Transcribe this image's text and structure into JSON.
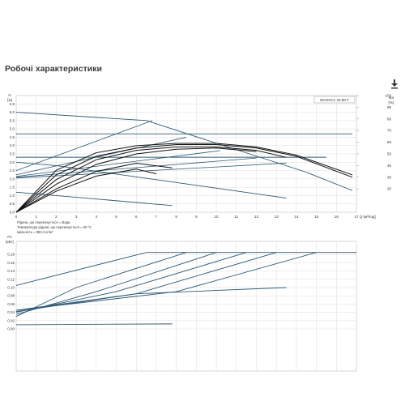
{
  "page": {
    "title": "Робочі характеристики",
    "download_icon": "download-icon"
  },
  "chart_data": [
    {
      "type": "line",
      "title": "",
      "model_label": "MAGNA1 40-80 F",
      "xlabel": "Q [м³/год]",
      "ylabel_left": "H [м]",
      "ylabel_right": "eta [%]",
      "xlim": [
        0,
        17
      ],
      "ylim": [
        0,
        7
      ],
      "y2lim": [
        0,
        100
      ],
      "x_ticks": [
        "0",
        "1",
        "2",
        "3",
        "4",
        "5",
        "6",
        "7",
        "8",
        "9",
        "10",
        "11",
        "12",
        "13",
        "14",
        "15",
        "16",
        "17"
      ],
      "y_ticks": [
        "0.0",
        "0.5",
        "1.0",
        "1.5",
        "2.0",
        "2.5",
        "3.0",
        "3.5",
        "4.0",
        "4.5",
        "5.0",
        "5.5",
        "6.0",
        "6.5"
      ],
      "y2_ticks": [
        "20",
        "30",
        "40",
        "50",
        "60",
        "70",
        "80",
        "90",
        "100"
      ],
      "notes": [
        "Рідина, що перекачується = Вода",
        "Температура рідини, що перекачується = 60 °C",
        "Щільність = 983.2 кг/м³"
      ],
      "grid": true,
      "series": [
        {
          "kind": "head",
          "x": [
            0,
            6.5,
            14.5,
            16.8
          ],
          "y": [
            6.0,
            5.5,
            2.4,
            1.3
          ]
        },
        {
          "kind": "head",
          "x": [
            0,
            16.8
          ],
          "y": [
            4.7,
            4.7
          ]
        },
        {
          "kind": "head",
          "x": [
            0,
            15.5
          ],
          "y": [
            3.3,
            3.3
          ]
        },
        {
          "kind": "head",
          "x": [
            0,
            2,
            13.5
          ],
          "y": [
            3.0,
            2.8,
            0.85
          ]
        },
        {
          "kind": "head",
          "x": [
            0,
            2,
            7.8
          ],
          "y": [
            1.2,
            1.0,
            0.4
          ]
        },
        {
          "kind": "system",
          "x": [
            0,
            6.8
          ],
          "y": [
            2.5,
            5.5
          ]
        },
        {
          "kind": "system",
          "x": [
            0,
            8.5
          ],
          "y": [
            2.25,
            4.5
          ]
        },
        {
          "kind": "system",
          "x": [
            0,
            10.2
          ],
          "y": [
            2.15,
            3.7
          ]
        },
        {
          "kind": "system",
          "x": [
            0,
            12
          ],
          "y": [
            2.1,
            3.25
          ]
        },
        {
          "kind": "system",
          "x": [
            0,
            13.5
          ],
          "y": [
            2.05,
            2.95
          ]
        },
        {
          "kind": "efficiency",
          "x": [
            0,
            2,
            4,
            6,
            8,
            10,
            12,
            14,
            16.8
          ],
          "y2": [
            0,
            36,
            51,
            57,
            59,
            59,
            56,
            49,
            32
          ]
        },
        {
          "kind": "efficiency",
          "x": [
            0,
            2,
            4,
            6,
            8,
            10,
            12,
            14,
            16.8
          ],
          "y2": [
            0,
            32,
            48,
            55,
            58,
            58,
            55,
            48,
            30
          ]
        },
        {
          "kind": "efficiency",
          "x": [
            0,
            2,
            4,
            6,
            8,
            10,
            12,
            13.5
          ],
          "y2": [
            0,
            28,
            45,
            53,
            56,
            56,
            53,
            47
          ]
        },
        {
          "kind": "efficiency",
          "x": [
            0,
            2,
            4,
            6,
            8,
            10,
            12
          ],
          "y2": [
            0,
            24,
            41,
            50,
            54,
            55,
            52
          ]
        },
        {
          "kind": "efficiency",
          "x": [
            0,
            2,
            4,
            6,
            7.8
          ],
          "y2": [
            0,
            20,
            35,
            42,
            38
          ]
        },
        {
          "kind": "efficiency",
          "x": [
            0,
            2,
            4,
            6,
            7
          ],
          "y2": [
            0,
            18,
            31,
            37,
            33
          ]
        }
      ]
    },
    {
      "type": "line",
      "title": "",
      "xlabel": "",
      "ylabel": "P1 [кВт]",
      "xlim": [
        0,
        17
      ],
      "ylim": [
        0,
        0.2
      ],
      "y_ticks": [
        "0.00",
        "0.02",
        "0.04",
        "0.06",
        "0.08",
        "0.10",
        "0.12",
        "0.14",
        "0.16",
        "0.18"
      ],
      "grid": true,
      "series": [
        {
          "x": [
            0,
            6.5,
            17
          ],
          "y": [
            0.105,
            0.185,
            0.185
          ]
        },
        {
          "x": [
            0,
            3,
            8.5
          ],
          "y": [
            0.03,
            0.1,
            0.185
          ]
        },
        {
          "x": [
            0,
            4,
            10
          ],
          "y": [
            0.035,
            0.09,
            0.185
          ]
        },
        {
          "x": [
            0,
            5,
            11.5
          ],
          "y": [
            0.04,
            0.09,
            0.185
          ]
        },
        {
          "x": [
            0,
            6,
            13
          ],
          "y": [
            0.042,
            0.085,
            0.185
          ]
        },
        {
          "x": [
            0,
            8,
            15
          ],
          "y": [
            0.045,
            0.09,
            0.185
          ]
        },
        {
          "x": [
            0,
            6,
            13.5
          ],
          "y": [
            0.045,
            0.085,
            0.1
          ]
        },
        {
          "x": [
            0,
            7.8
          ],
          "y": [
            0.01,
            0.012
          ]
        }
      ]
    }
  ]
}
